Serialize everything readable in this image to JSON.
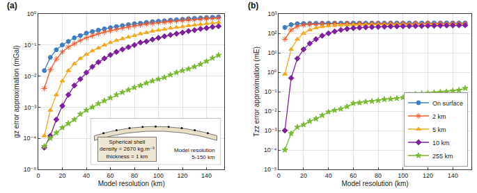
{
  "chart_data": [
    {
      "type": "line",
      "title": "(a)",
      "x_label": "Model resolution (km)",
      "y_label": "gz error approximation (mGal)",
      "x": [
        5,
        10,
        15,
        20,
        25,
        30,
        35,
        40,
        45,
        50,
        55,
        60,
        65,
        70,
        75,
        80,
        85,
        90,
        95,
        100,
        105,
        110,
        115,
        120,
        125,
        130,
        135,
        140,
        145,
        150
      ],
      "series": [
        {
          "name": "On surface",
          "color": "#3C7FC9",
          "marker": "circle",
          "line_style": "solid",
          "values": [
            0.015,
            0.04,
            0.07,
            0.1,
            0.13,
            0.17,
            0.2,
            0.24,
            0.27,
            0.3,
            0.33,
            0.36,
            0.39,
            0.42,
            0.45,
            0.48,
            0.5,
            0.53,
            0.56,
            0.58,
            0.6,
            0.63,
            0.65,
            0.67,
            0.7,
            0.72,
            0.74,
            0.76,
            0.78,
            0.8
          ]
        },
        {
          "name": "2 km",
          "color": "#EE5A2C",
          "marker": "asterisk",
          "line_style": "solid",
          "values": [
            0.004,
            0.016,
            0.035,
            0.06,
            0.085,
            0.11,
            0.14,
            0.17,
            0.2,
            0.23,
            0.26,
            0.29,
            0.32,
            0.35,
            0.38,
            0.41,
            0.44,
            0.47,
            0.49,
            0.52,
            0.54,
            0.57,
            0.59,
            0.61,
            0.64,
            0.66,
            0.68,
            0.7,
            0.72,
            0.74
          ]
        },
        {
          "name": "5 km",
          "color": "#F4A81D",
          "marker": "triangle",
          "line_style": "solid",
          "values": [
            0.00012,
            0.0008,
            0.0025,
            0.007,
            0.015,
            0.025,
            0.037,
            0.05,
            0.065,
            0.08,
            0.1,
            0.12,
            0.14,
            0.16,
            0.18,
            0.2,
            0.23,
            0.25,
            0.28,
            0.3,
            0.32,
            0.35,
            0.37,
            0.39,
            0.42,
            0.44,
            0.46,
            0.49,
            0.51,
            0.53
          ]
        },
        {
          "name": "10 km",
          "color": "#7E1F9E",
          "marker": "diamond",
          "line_style": "solid",
          "values": [
            5e-05,
            0.00012,
            0.0004,
            0.0011,
            0.0025,
            0.005,
            0.008,
            0.013,
            0.02,
            0.028,
            0.037,
            0.048,
            0.06,
            0.072,
            0.085,
            0.1,
            0.12,
            0.13,
            0.15,
            0.17,
            0.19,
            0.21,
            0.23,
            0.25,
            0.28,
            0.3,
            0.33,
            0.35,
            0.38,
            0.4
          ]
        },
        {
          "name": "255 km",
          "color": "#77B82E",
          "marker": "star",
          "line_style": "solid",
          "values": [
            5.5e-05,
            0.0001,
            0.00015,
            0.00022,
            0.0003,
            0.0004,
            0.0006,
            0.0008,
            0.001,
            0.0013,
            0.0016,
            0.002,
            0.0025,
            0.003,
            0.0036,
            0.0043,
            0.005,
            0.006,
            0.007,
            0.008,
            0.009,
            0.011,
            0.013,
            0.015,
            0.017,
            0.02,
            0.024,
            0.03,
            0.038,
            0.047
          ]
        }
      ],
      "xlim": [
        0,
        155
      ],
      "xticks": [
        0,
        20,
        40,
        60,
        80,
        100,
        120,
        140
      ],
      "ylim": [
        1e-05,
        1
      ],
      "yticks": [
        {
          "value": 1e-05,
          "label": "10⁻⁵"
        },
        {
          "value": 0.0001,
          "label": "10⁻⁴"
        },
        {
          "value": 0.001,
          "label": "10⁻³"
        },
        {
          "value": 0.01,
          "label": "10⁻²"
        },
        {
          "value": 0.1,
          "label": "10⁻¹"
        },
        {
          "value": 1,
          "label": "10⁰"
        }
      ],
      "log": "y",
      "grid": true,
      "annotations": [
        "Spherical shell",
        "density = 2670 kg.m⁻³",
        "thickness = 1 km",
        "Model resolution",
        "5-150 km"
      ]
    },
    {
      "type": "line",
      "title": "(b)",
      "x_label": "Model resolution (km)",
      "y_label": "Tzz error approximation (mE)",
      "x": [
        5,
        10,
        15,
        20,
        25,
        30,
        35,
        40,
        45,
        50,
        55,
        60,
        65,
        70,
        75,
        80,
        85,
        90,
        95,
        100,
        105,
        110,
        115,
        120,
        125,
        130,
        135,
        140,
        145,
        150
      ],
      "series": [
        {
          "name": "On surface",
          "color": "#3C7FC9",
          "marker": "circle",
          "line_style": "solid",
          "values": [
            200,
            280,
            310,
            320,
            325,
            328,
            330,
            332,
            333,
            334,
            335,
            335,
            336,
            336,
            337,
            337,
            337,
            338,
            338,
            338,
            338,
            339,
            339,
            339,
            339,
            340,
            340,
            340,
            340,
            340
          ]
        },
        {
          "name": "2 km",
          "color": "#EE5A2C",
          "marker": "asterisk",
          "line_style": "solid",
          "values": [
            50,
            150,
            230,
            270,
            290,
            300,
            303,
            305,
            307,
            308,
            309,
            310,
            311,
            311,
            312,
            312,
            313,
            313,
            314,
            314,
            315,
            315,
            315,
            316,
            316,
            316,
            317,
            317,
            317,
            318
          ]
        },
        {
          "name": "5 km",
          "color": "#F4A81D",
          "marker": "triangle",
          "line_style": "solid",
          "values": [
            0.8,
            15,
            50,
            100,
            150,
            190,
            220,
            240,
            255,
            265,
            270,
            273,
            276,
            278,
            280,
            281,
            282,
            283,
            284,
            285,
            286,
            286,
            287,
            287,
            288,
            288,
            289,
            289,
            290,
            290
          ]
        },
        {
          "name": "10 km",
          "color": "#7E1F9E",
          "marker": "diamond",
          "line_style": "solid",
          "values": [
            0.001,
            0.5,
            5,
            15,
            30,
            50,
            75,
            100,
            125,
            150,
            170,
            185,
            195,
            205,
            210,
            215,
            220,
            225,
            228,
            232,
            235,
            238,
            241,
            244,
            247,
            250,
            253,
            255,
            258,
            260
          ]
        },
        {
          "name": "255 km",
          "color": "#77B82E",
          "marker": "star",
          "line_style": "solid",
          "values": [
            0.0001,
            0.0007,
            0.0015,
            0.002,
            0.003,
            0.004,
            0.006,
            0.009,
            0.011,
            0.013,
            0.017,
            0.025,
            0.027,
            0.03,
            0.032,
            0.035,
            0.04,
            0.042,
            0.045,
            0.05,
            0.07,
            0.075,
            0.08,
            0.085,
            0.09,
            0.095,
            0.1,
            0.11,
            0.12,
            0.15
          ]
        }
      ],
      "xlim": [
        0,
        155
      ],
      "xticks": [
        0,
        20,
        40,
        60,
        80,
        100,
        120,
        140
      ],
      "ylim": [
        1e-05,
        1000
      ],
      "yticks": [
        {
          "value": 1e-05,
          "label": "10⁻⁵"
        },
        {
          "value": 0.0001,
          "label": "10⁻⁴"
        },
        {
          "value": 0.001,
          "label": "10⁻³"
        },
        {
          "value": 0.01,
          "label": "10⁻²"
        },
        {
          "value": 0.1,
          "label": "10⁻¹"
        },
        {
          "value": 1,
          "label": "10⁰"
        },
        {
          "value": 10,
          "label": "10¹"
        },
        {
          "value": 100,
          "label": "10²"
        },
        {
          "value": 1000,
          "label": "10³"
        }
      ],
      "log": "y",
      "grid": true,
      "legend": "lower right"
    }
  ]
}
